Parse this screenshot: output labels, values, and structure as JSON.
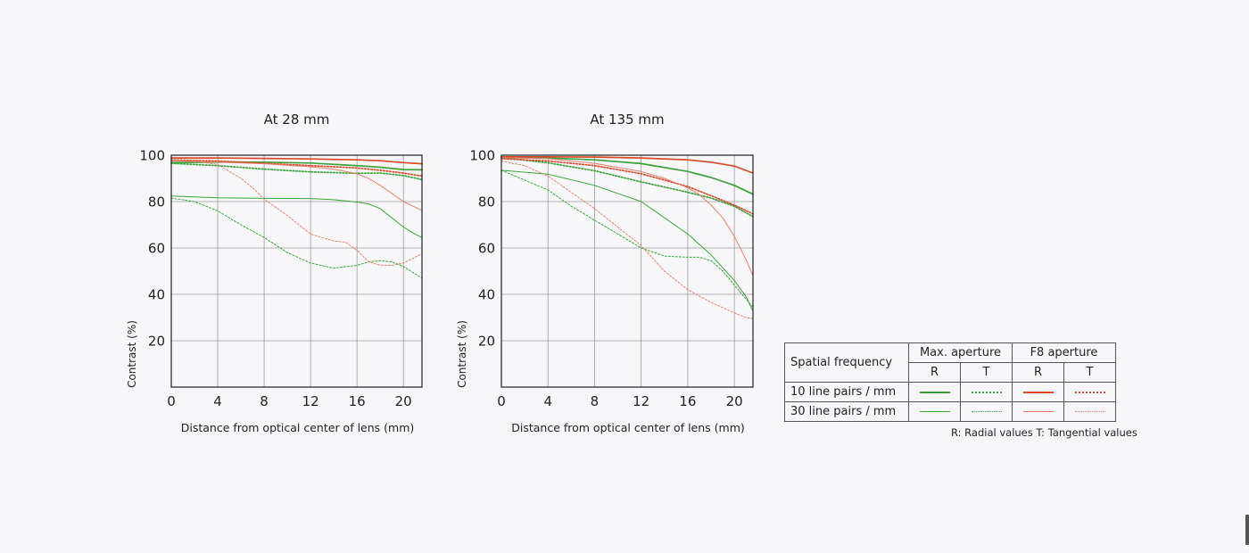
{
  "chart_data": [
    {
      "type": "line",
      "title": "At 28 mm",
      "xlabel": "Distance from optical center of lens (mm)",
      "ylabel": "Contrast (%)",
      "xlim": [
        0,
        21.6
      ],
      "ylim": [
        0,
        100
      ],
      "xticks": [
        0,
        4,
        8,
        12,
        16,
        20
      ],
      "yticks": [
        20,
        40,
        60,
        80,
        100
      ],
      "grid": true,
      "series": [
        {
          "name": "10 line pairs / mm — Max. aperture R",
          "color": "#3ca23c",
          "style": "solid",
          "weight": "bold",
          "x": [
            0,
            4,
            8,
            12,
            16,
            18,
            20,
            21.6
          ],
          "y": [
            96.8,
            97,
            97,
            96.6,
            95.5,
            94.8,
            93.8,
            93.7
          ]
        },
        {
          "name": "10 line pairs / mm — Max. aperture T",
          "color": "#3ca23c",
          "style": "dotted",
          "weight": "bold",
          "x": [
            0,
            4,
            8,
            12,
            16,
            18,
            20,
            21.6
          ],
          "y": [
            96.5,
            95.5,
            94,
            92.8,
            92.2,
            92.3,
            91.2,
            89.5
          ]
        },
        {
          "name": "10 line pairs / mm — F8 aperture R",
          "color": "#d94a2a",
          "style": "solid",
          "weight": "bold",
          "x": [
            0,
            4,
            8,
            12,
            16,
            18,
            20,
            21.6
          ],
          "y": [
            98.8,
            98.8,
            98.6,
            98.4,
            98,
            97.6,
            96.8,
            96.3
          ]
        },
        {
          "name": "10 line pairs / mm — F8 aperture T",
          "color": "#d94a2a",
          "style": "dotted",
          "weight": "bold",
          "x": [
            0,
            4,
            8,
            12,
            16,
            18,
            20,
            21.6
          ],
          "y": [
            98,
            97.5,
            96.5,
            95.5,
            94.5,
            93.5,
            92.3,
            91
          ]
        },
        {
          "name": "30 line pairs / mm — Max. aperture R",
          "color": "#3ca23c",
          "style": "solid",
          "weight": "light",
          "x": [
            0,
            4,
            8,
            12,
            14,
            16,
            17,
            18,
            19,
            20,
            21,
            21.6
          ],
          "y": [
            82.4,
            81.6,
            81.4,
            81.3,
            80.8,
            79.8,
            79,
            77,
            73,
            69,
            66,
            64.5
          ]
        },
        {
          "name": "30 line pairs / mm — Max. aperture T",
          "color": "#3ca23c",
          "style": "dotted",
          "weight": "light",
          "x": [
            0,
            2,
            4,
            6,
            8,
            10,
            12,
            14,
            16,
            17,
            18,
            19,
            20,
            21.6
          ],
          "y": [
            81.5,
            80,
            76,
            70,
            64.5,
            58,
            53.5,
            51.3,
            52.5,
            54,
            54.5,
            54,
            52,
            47
          ]
        },
        {
          "name": "30 line pairs / mm — F8 aperture R",
          "color": "#e6806a",
          "style": "solid",
          "weight": "light",
          "x": [
            0,
            4,
            8,
            10,
            12,
            14,
            16,
            17,
            18,
            19,
            20,
            21.6
          ],
          "y": [
            97.5,
            97,
            96.3,
            95.6,
            95,
            94,
            92,
            90,
            87,
            83.5,
            80,
            76.2
          ]
        },
        {
          "name": "30 line pairs / mm — F8 aperture T",
          "color": "#e6806a",
          "style": "dotted",
          "weight": "light",
          "x": [
            0,
            2,
            4,
            6,
            7,
            8,
            10,
            12,
            14,
            15,
            16,
            17,
            18,
            19,
            20,
            21,
            21.6
          ],
          "y": [
            98,
            97.5,
            96,
            90,
            86,
            81,
            74,
            66,
            63,
            62.5,
            59,
            54,
            52.6,
            52.5,
            53.5,
            56,
            57.5
          ]
        }
      ]
    },
    {
      "type": "line",
      "title": "At 135 mm",
      "xlabel": "Distance from optical center of lens (mm)",
      "ylabel": "Contrast (%)",
      "xlim": [
        0,
        21.6
      ],
      "ylim": [
        0,
        100
      ],
      "xticks": [
        0,
        4,
        8,
        12,
        16,
        20
      ],
      "yticks": [
        20,
        40,
        60,
        80,
        100
      ],
      "grid": true,
      "series": [
        {
          "name": "10 line pairs / mm — Max. aperture R",
          "color": "#3ca23c",
          "style": "solid",
          "weight": "bold",
          "x": [
            0,
            4,
            8,
            12,
            16,
            18,
            20,
            21.6
          ],
          "y": [
            99,
            98.8,
            98,
            96.4,
            93,
            90.4,
            87,
            83.2
          ]
        },
        {
          "name": "10 line pairs / mm — Max. aperture T",
          "color": "#3ca23c",
          "style": "dotted",
          "weight": "bold",
          "x": [
            0,
            4,
            8,
            12,
            16,
            18,
            20,
            21.6
          ],
          "y": [
            99,
            96.7,
            93.3,
            88.5,
            84,
            81.5,
            78,
            73.5
          ]
        },
        {
          "name": "10 line pairs / mm — F8 aperture R",
          "color": "#d94a2a",
          "style": "solid",
          "weight": "bold",
          "x": [
            0,
            4,
            8,
            12,
            16,
            18,
            20,
            21.6
          ],
          "y": [
            99.3,
            99.3,
            99.2,
            98.8,
            98,
            97,
            95.3,
            92.3
          ]
        },
        {
          "name": "10 line pairs / mm — F8 aperture T",
          "color": "#d94a2a",
          "style": "dotted",
          "weight": "bold",
          "x": [
            0,
            4,
            8,
            12,
            16,
            18,
            20,
            21.6
          ],
          "y": [
            98.5,
            97.5,
            95.5,
            92,
            86.5,
            82.5,
            78.5,
            74.7
          ]
        },
        {
          "name": "30 line pairs / mm — Max. aperture R",
          "color": "#3ca23c",
          "style": "solid",
          "weight": "light",
          "x": [
            0,
            4,
            8,
            12,
            14,
            16,
            18,
            20,
            21,
            21.6
          ],
          "y": [
            93.5,
            91.8,
            87,
            80,
            73,
            66,
            57,
            46,
            39,
            32.8
          ]
        },
        {
          "name": "30 line pairs / mm — Max. aperture T",
          "color": "#3ca23c",
          "style": "dotted",
          "weight": "light",
          "x": [
            0,
            4,
            6,
            8,
            10,
            12,
            14,
            16,
            17,
            18,
            19,
            20,
            21,
            21.6
          ],
          "y": [
            93.5,
            85,
            78,
            72,
            66,
            60,
            56.5,
            56,
            56,
            54.5,
            50,
            44,
            38,
            34.5
          ]
        },
        {
          "name": "30 line pairs / mm — F8 aperture R",
          "color": "#e6806a",
          "style": "solid",
          "weight": "light",
          "x": [
            0,
            4,
            8,
            12,
            14,
            16,
            17,
            18,
            19,
            20,
            21,
            21.6
          ],
          "y": [
            99,
            98.5,
            96.5,
            93,
            90,
            86,
            83,
            78.5,
            73,
            65,
            55,
            48
          ]
        },
        {
          "name": "30 line pairs / mm — F8 aperture T",
          "color": "#e6806a",
          "style": "dotted",
          "weight": "light",
          "x": [
            0,
            2,
            4,
            6,
            8,
            10,
            12,
            14,
            16,
            18,
            20,
            21,
            21.6
          ],
          "y": [
            97.5,
            95.5,
            91,
            84,
            77,
            69,
            61,
            50,
            42,
            36.5,
            32,
            30,
            29.5
          ]
        }
      ]
    }
  ],
  "legend_table": {
    "row_header": "Spatial frequency",
    "groups": [
      "Max. aperture",
      "F8 aperture"
    ],
    "columns": [
      "R",
      "T",
      "R",
      "T"
    ],
    "rows": [
      "10 line pairs / mm",
      "30 line pairs / mm"
    ],
    "note": "R: Radial values  T: Tangential values"
  },
  "colors": {
    "green": "#3ca23c",
    "red_bold": "#d94a2a",
    "red_light": "#e6806a",
    "grid": "#9a9a9a",
    "frame": "#222222"
  }
}
